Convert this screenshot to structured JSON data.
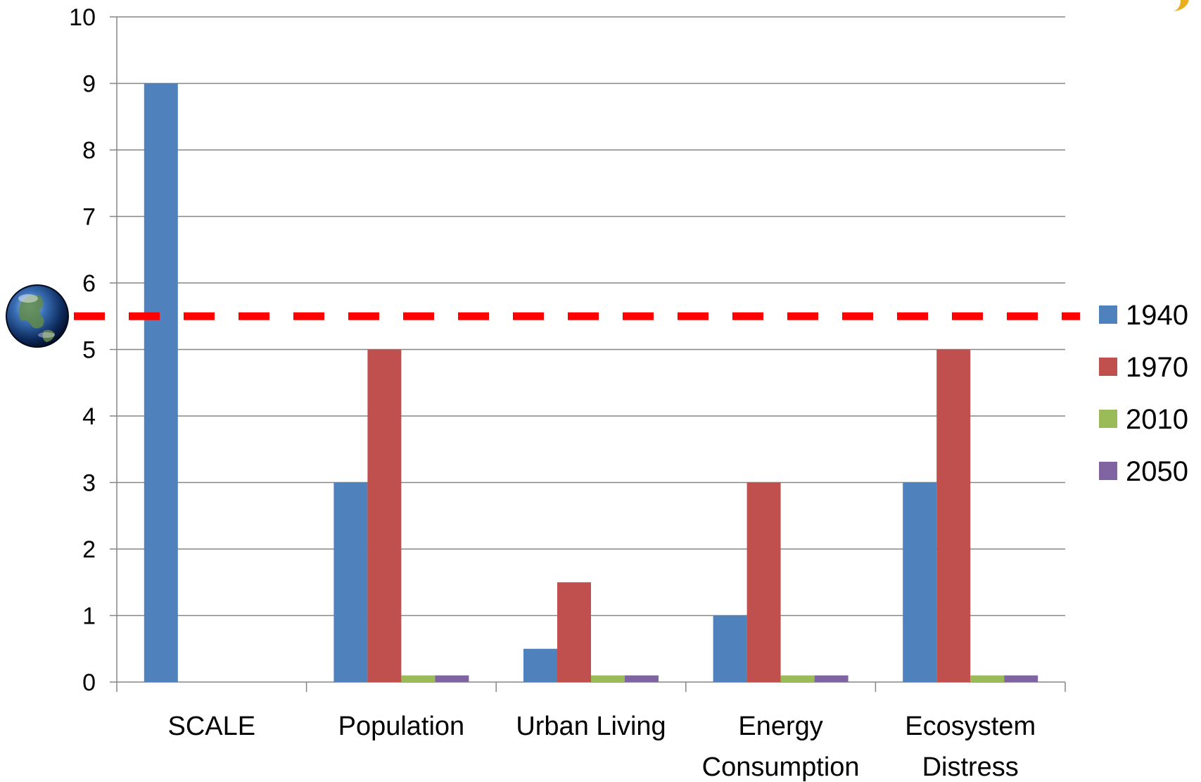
{
  "chart_data": {
    "type": "bar",
    "categories": [
      [
        "SCALE"
      ],
      [
        "Population"
      ],
      [
        "Urban Living"
      ],
      [
        "Energy",
        "Consumption"
      ],
      [
        "Ecosystem",
        "Distress"
      ]
    ],
    "series": [
      {
        "name": "1940",
        "color": "#4F81BD",
        "values": [
          9,
          3,
          0.5,
          1,
          3
        ]
      },
      {
        "name": "1970",
        "color": "#C0504D",
        "values": [
          0,
          5,
          1.5,
          3,
          5
        ]
      },
      {
        "name": "2010",
        "color": "#9BBB59",
        "values": [
          0,
          0.1,
          0.1,
          0.1,
          0.1
        ]
      },
      {
        "name": "2050",
        "color": "#8064A2",
        "values": [
          0,
          0.1,
          0.1,
          0.1,
          0.1
        ]
      }
    ],
    "ylim": [
      0,
      10
    ],
    "yticks": [
      "0",
      "1",
      "2",
      "3",
      "4",
      "5",
      "6",
      "7",
      "8",
      "9",
      "10"
    ],
    "grid": true,
    "legend_position": "right",
    "reference_line": {
      "value": 5.5,
      "color": "#FF0000",
      "style": "dashed"
    },
    "reference_marker_icon": "earth-globe-icon",
    "corner_decoration_icon": "yellow-swoosh-icon"
  }
}
